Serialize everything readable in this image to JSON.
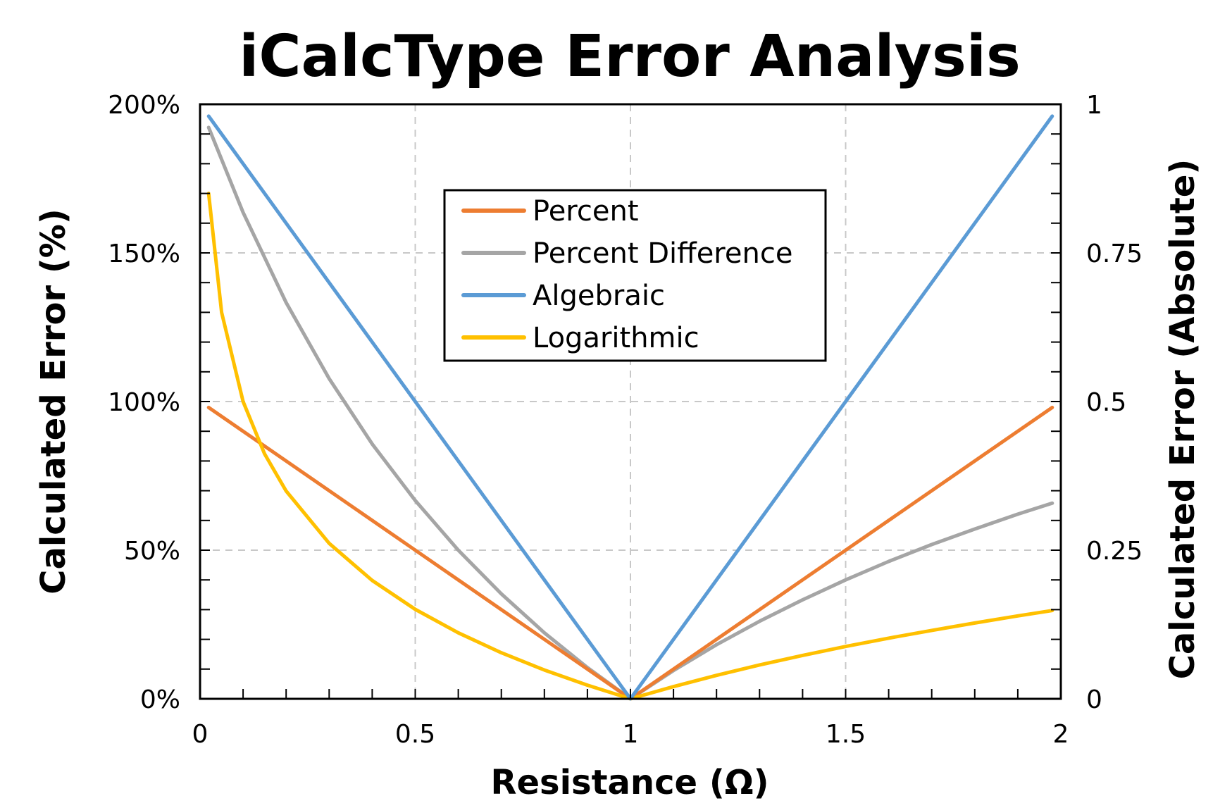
{
  "chart_data": {
    "type": "line",
    "title": "iCalcType Error Analysis",
    "xlabel": "Resistance (Ω)",
    "ylabel": "Calculated Error (%)",
    "y2label": "Calculated Error (Absolute)",
    "xlim": [
      0,
      2
    ],
    "ylim": [
      0,
      200
    ],
    "y2lim": [
      0,
      1
    ],
    "xticks": [
      0,
      0.5,
      1,
      1.5,
      2
    ],
    "xtick_labels": [
      "0",
      "0.5",
      "1",
      "1.5",
      "2"
    ],
    "yticks": [
      0,
      50,
      100,
      150,
      200
    ],
    "ytick_labels": [
      "0%",
      "50%",
      "100%",
      "150%",
      "200%"
    ],
    "y2ticks": [
      0,
      0.25,
      0.5,
      0.75,
      1
    ],
    "y2tick_labels": [
      "0",
      "0.25",
      "0.5",
      "0.75",
      "1"
    ],
    "x_minor_step": 0.1,
    "y_minor_step": 10,
    "grid": true,
    "legend_position": "upper-center",
    "series": [
      {
        "name": "Percent",
        "color": "#ED7D31",
        "axis": "left",
        "x": [
          0.02,
          0.5,
          1.0,
          1.5,
          1.98
        ],
        "y": [
          98,
          50,
          0,
          50,
          98
        ]
      },
      {
        "name": "Percent Difference",
        "color": "#A5A5A5",
        "axis": "left",
        "x": [
          0.02,
          0.1,
          0.2,
          0.3,
          0.4,
          0.5,
          0.6,
          0.7,
          0.8,
          0.9,
          1.0,
          1.1,
          1.2,
          1.3,
          1.4,
          1.5,
          1.6,
          1.7,
          1.8,
          1.9,
          1.98
        ],
        "y": [
          192.2,
          163.6,
          133.3,
          107.7,
          85.7,
          66.7,
          50.0,
          35.3,
          22.2,
          10.5,
          0,
          9.5,
          18.2,
          26.1,
          33.3,
          40.0,
          46.2,
          51.9,
          57.1,
          62.1,
          65.8
        ]
      },
      {
        "name": "Algebraic",
        "color": "#5B9BD5",
        "axis": "right",
        "x": [
          0.02,
          0.5,
          0.95,
          1.0,
          1.05,
          1.5,
          1.98
        ],
        "y": [
          0.98,
          0.5,
          0.05,
          0,
          0.05,
          0.5,
          0.98
        ]
      },
      {
        "name": "Logarithmic",
        "color": "#FFC000",
        "axis": "left",
        "x": [
          0.02,
          0.05,
          0.1,
          0.15,
          0.2,
          0.3,
          0.4,
          0.5,
          0.6,
          0.7,
          0.8,
          0.9,
          1.0,
          1.1,
          1.2,
          1.3,
          1.4,
          1.5,
          1.6,
          1.7,
          1.8,
          1.9,
          1.98
        ],
        "y": [
          170,
          130,
          100,
          82.4,
          69.9,
          52.3,
          39.8,
          30.1,
          22.2,
          15.5,
          9.7,
          4.6,
          0,
          4.1,
          7.9,
          11.4,
          14.6,
          17.6,
          20.4,
          23.0,
          25.5,
          27.9,
          29.7
        ]
      }
    ]
  }
}
